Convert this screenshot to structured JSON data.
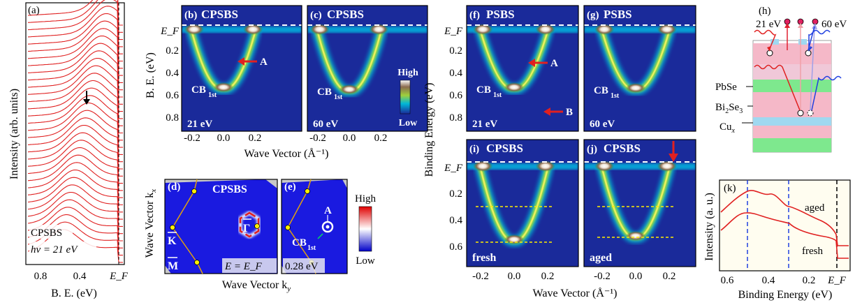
{
  "panel_a": {
    "label": "(a)",
    "ylabel": "Intensity (arb. units)",
    "xlabel": "B. E. (eV)",
    "ticks": [
      "0.8",
      "0.4",
      "E_F"
    ],
    "sample": "CPSBS",
    "photon": "hν = 21 eV",
    "n_curves": 34
  },
  "panel_b": {
    "label": "(b)",
    "title": "CPSBS",
    "energy": "21 eV",
    "band": "CB",
    "band_sub": "1st",
    "marker": "A"
  },
  "panel_c": {
    "label": "(c)",
    "title": "CPSBS",
    "energy": "60 eV",
    "band": "CB",
    "band_sub": "1st",
    "scale_high": "High",
    "scale_low": "Low"
  },
  "axes_bc": {
    "ylabel": "B. E. (eV)",
    "yticks": [
      "E_F",
      "0.2",
      "0.4",
      "0.6",
      "0.8"
    ],
    "xticks": [
      "-0.2",
      "0.0",
      "0.2"
    ],
    "xlabel": "Wave Vector (Å⁻¹)"
  },
  "panel_d": {
    "label": "(d)",
    "title": "CPSBS",
    "gamma": "Γ",
    "kbar": "K",
    "mbar": "M",
    "energy": "E = E_F"
  },
  "panel_e": {
    "label": "(e)",
    "marker": "A",
    "band": "CB",
    "band_sub": "1st",
    "energy": "0.28 eV",
    "scale_high": "High",
    "scale_low": "Low"
  },
  "axes_de": {
    "ylabel": "Wave Vector k",
    "ylabel_sub": "x",
    "xlabel": "Wave Vector k",
    "xlabel_sub": "y"
  },
  "panel_f": {
    "label": "(f)",
    "title": "PSBS",
    "energy": "21 eV",
    "band": "CB",
    "band_sub": "1st",
    "marker_a": "A",
    "marker_b": "B"
  },
  "panel_g": {
    "label": "(g)",
    "title": "PSBS",
    "energy": "60 eV",
    "band": "CB",
    "band_sub": "1st"
  },
  "panel_i": {
    "label": "(i)",
    "title": "CPSBS",
    "state": "fresh"
  },
  "panel_j": {
    "label": "(j)",
    "title": "CPSBS",
    "state": "aged"
  },
  "axes_fgij": {
    "ylabel": "Binding Energy (eV)",
    "yticks_top": [
      "E_F",
      "0.2",
      "0.4",
      "0.6",
      "0.8"
    ],
    "yticks_bot": [
      "E_F",
      "0.2",
      "0.4",
      "0.6"
    ],
    "xticks": [
      "-0.2",
      "0.0",
      "0.2"
    ],
    "xlabel": "Wave Vector (Å⁻¹)"
  },
  "panel_h": {
    "label": "(h)",
    "e21": "21 eV",
    "e60": "60 eV",
    "layer1": "PbSe",
    "layer2": "Bi",
    "layer2_sub1": "2",
    "layer2_mid": "Se",
    "layer2_sub2": "3",
    "layer3": "Cu",
    "layer3_sub": "x"
  },
  "panel_k": {
    "label": "(k)",
    "ylabel": "Intensity (a. u.)",
    "xlabel": "Binding Energy (eV)",
    "xticks": [
      "0.6",
      "0.4",
      "0.2",
      "E_F"
    ],
    "aged": "aged",
    "fresh": "fresh"
  }
}
